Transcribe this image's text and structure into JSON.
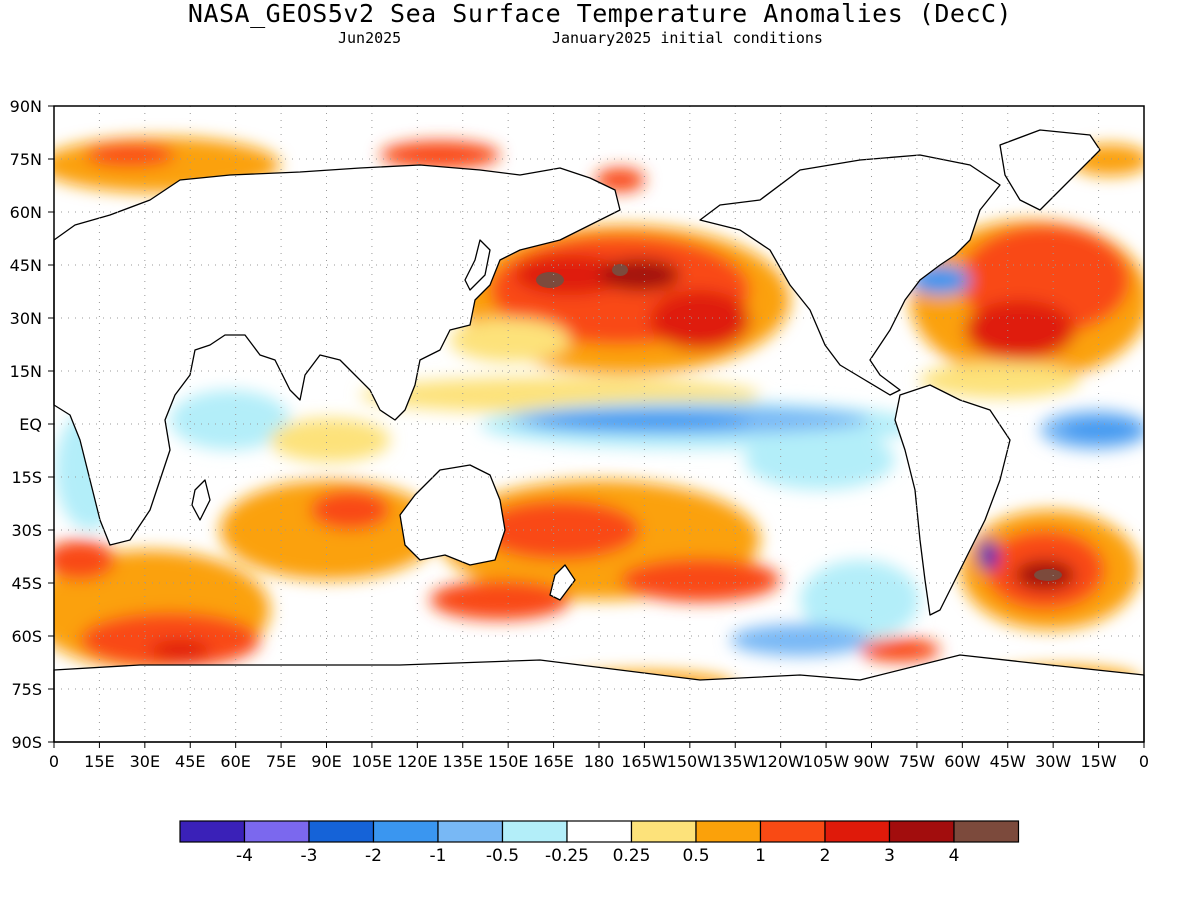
{
  "title": "NASA_GEOS5v2 Sea Surface Temperature Anomalies (DecC)",
  "subtitle_left": "Jun2025",
  "subtitle_right": "January2025 initial conditions",
  "lat_labels": [
    "90N",
    "75N",
    "60N",
    "45N",
    "30N",
    "15N",
    "EQ",
    "15S",
    "30S",
    "45S",
    "60S",
    "75S",
    "90S"
  ],
  "lon_labels": [
    "0",
    "15E",
    "30E",
    "45E",
    "60E",
    "75E",
    "90E",
    "105E",
    "120E",
    "135E",
    "150E",
    "165E",
    "180",
    "165W",
    "150W",
    "135W",
    "120W",
    "105W",
    "90W",
    "75W",
    "60W",
    "45W",
    "30W",
    "15W",
    "0"
  ],
  "colorbar": {
    "colors": [
      "#3a21b8",
      "#7b68ee",
      "#1563d8",
      "#3a96f0",
      "#78b8f5",
      "#b3eef9",
      "#ffffff",
      "#fde27a",
      "#fba10a",
      "#f94a14",
      "#df1a0a",
      "#a20d0d",
      "#7c4a3c"
    ],
    "labels": [
      "-4",
      "-3",
      "-2",
      "-1",
      "-0.5",
      "-0.25",
      "0.25",
      "0.5",
      "1",
      "2",
      "3",
      "4"
    ]
  },
  "colors": {
    "land": "#ffffff",
    "coast": "#000000",
    "grid": "#999999",
    "frame": "#000000"
  }
}
